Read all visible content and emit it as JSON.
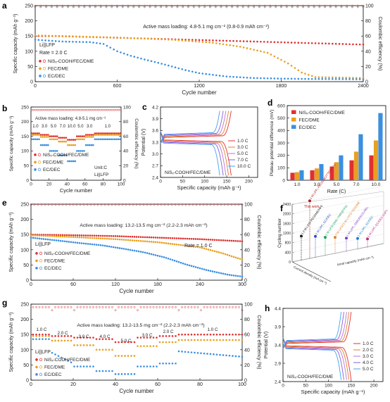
{
  "colors": {
    "red": "#e03030",
    "orange": "#e8a020",
    "blue": "#3b8fe0",
    "darkred": "#b02020"
  },
  "panels": {
    "a": "a",
    "b": "b",
    "c": "c",
    "d": "d",
    "e": "e",
    "f": "f",
    "g": "g",
    "h": "h"
  },
  "chart_data": [
    {
      "id": "a",
      "type": "scatter",
      "xlabel": "Cycle number",
      "ylabel": "Specific capacity (mAh g⁻¹)",
      "y2label": "Coulombic efficiency (%)",
      "xlim": [
        0,
        2400
      ],
      "ylim": [
        0,
        250
      ],
      "y2lim": [
        0,
        100
      ],
      "xticks": [
        "0",
        "600",
        "1200",
        "1800",
        "2400"
      ],
      "yticks": [
        "0",
        "50",
        "100",
        "150",
        "200",
        "250"
      ],
      "y2ticks": [
        "0",
        "20",
        "40",
        "60",
        "80",
        "100"
      ],
      "annotation": "Active mass loading: 4.8-5.1 mg cm⁻² (0.8-0.9 mAh cm⁻²)",
      "cell": "Li||LFP",
      "rate": "Rate = 2.0 C",
      "legend": [
        "NiSₓ-COOH/FEC/DME",
        "FEC/DME",
        "EC/DEC"
      ],
      "series": [
        {
          "name": "NiSₓ-COOH/FEC/DME",
          "x": [
            0,
            150,
            400,
            800,
            1200,
            1600,
            2000,
            2400
          ],
          "y": [
            150,
            150,
            147,
            142,
            137,
            132,
            127,
            122
          ]
        },
        {
          "name": "FEC/DME",
          "x": [
            0,
            200,
            600,
            1000,
            1300,
            1500,
            1700,
            1850,
            1950,
            2050,
            2400
          ],
          "y": [
            152,
            150,
            145,
            138,
            128,
            115,
            95,
            60,
            30,
            15,
            12
          ]
        },
        {
          "name": "EC/DEC",
          "x": [
            0,
            200,
            400,
            500,
            600,
            700,
            800,
            900,
            1000,
            1100,
            1200,
            1400,
            1600,
            1800,
            2000,
            2400
          ],
          "y": [
            138,
            132,
            130,
            124,
            100,
            85,
            73,
            62,
            50,
            38,
            28,
            17,
            12,
            10,
            9,
            8
          ]
        }
      ],
      "ce": [
        {
          "name": "NiSₓ-COOH/FEC/DME",
          "value": 99.8
        },
        {
          "name": "FEC/DME",
          "value": 99.3
        },
        {
          "name": "EC/DEC",
          "value": 98.8
        }
      ]
    },
    {
      "id": "b",
      "type": "scatter",
      "xlabel": "Cycle number",
      "ylabel": "Specific capacity (mAh g⁻¹)",
      "y2label": "Coulombic efficiency (%)",
      "xlim": [
        0,
        100
      ],
      "ylim": [
        0,
        250
      ],
      "y2lim": [
        0,
        100
      ],
      "xticks": [
        "0",
        "20",
        "40",
        "60",
        "80",
        "100"
      ],
      "yticks": [
        "0",
        "50",
        "100",
        "150",
        "200",
        "250"
      ],
      "y2ticks": [
        "0",
        "20",
        "40",
        "60",
        "80",
        "100"
      ],
      "annotation": "Active mass loading: 4.8-5.1 mg cm⁻²",
      "unit": "Unit:C",
      "cell": "Li||LFP",
      "rate_labels": [
        "1.0",
        "3.0",
        "5.0",
        "7.0",
        "10.0",
        "5.0",
        "3.0",
        "1.0"
      ],
      "legend": [
        "NiSₓ-COOH/FEC/DME",
        "FEC/DME",
        "EC/DEC"
      ],
      "segments": [
        0,
        10,
        20,
        30,
        40,
        50,
        60,
        70,
        100
      ],
      "series": [
        {
          "name": "NiSₓ-COOH/FEC/DME",
          "values": [
            160,
            155,
            150,
            145,
            138,
            150,
            155,
            160
          ]
        },
        {
          "name": "FEC/DME",
          "values": [
            155,
            148,
            140,
            132,
            120,
            140,
            148,
            155
          ]
        },
        {
          "name": "EC/DEC",
          "values": [
            140,
            120,
            100,
            85,
            65,
            100,
            120,
            140
          ]
        }
      ]
    },
    {
      "id": "c",
      "type": "line",
      "xlabel": "Specific capacity (mAh g⁻¹)",
      "ylabel": "Potential (V)",
      "xlim": [
        0,
        220
      ],
      "ylim": [
        2.4,
        4.2
      ],
      "xticks": [
        "0",
        "50",
        "100",
        "150",
        "200"
      ],
      "yticks": [
        "2.4",
        "2.7",
        "3.0",
        "3.3",
        "3.6",
        "3.9",
        "4.2"
      ],
      "caption": "NiSₓ-COOH/FEC/DME",
      "series": [
        {
          "name": "1.0 C",
          "color": "#e03030",
          "capacity": 160
        },
        {
          "name": "3.0 C",
          "color": "#e08030",
          "capacity": 154
        },
        {
          "name": "5.0 C",
          "color": "#c070d0",
          "capacity": 148
        },
        {
          "name": "7.0 C",
          "color": "#8060e0",
          "capacity": 142
        },
        {
          "name": "10.0 C",
          "color": "#40a0f0",
          "capacity": 134
        }
      ]
    },
    {
      "id": "d",
      "type": "bar",
      "xlabel": "Rate (C)",
      "ylabel": "Plateau potential difference (mV)",
      "ylim": [
        0,
        600
      ],
      "yticks": [
        "0",
        "100",
        "200",
        "300",
        "400",
        "500",
        "600"
      ],
      "categories": [
        "1.0",
        "3.0",
        "5.0",
        "7.0",
        "10.0"
      ],
      "series": [
        {
          "name": "NiSₓ-COOH/FEC/DME",
          "values": [
            60,
            80,
            110,
            160,
            200
          ]
        },
        {
          "name": "FEC/DME",
          "values": [
            65,
            95,
            145,
            230,
            320
          ]
        },
        {
          "name": "EC/DEC",
          "values": [
            80,
            130,
            200,
            370,
            540
          ]
        }
      ]
    },
    {
      "id": "e",
      "type": "scatter",
      "xlabel": "Cycle number",
      "ylabel": "Specific capacity (mAh g⁻¹)",
      "y2label": "Coulombic efficiency (%)",
      "xlim": [
        0,
        300
      ],
      "ylim": [
        0,
        250
      ],
      "y2lim": [
        0,
        100
      ],
      "xticks": [
        "0",
        "60",
        "120",
        "180",
        "240",
        "300"
      ],
      "yticks": [
        "0",
        "50",
        "100",
        "150",
        "200",
        "250"
      ],
      "y2ticks": [
        "0",
        "20",
        "40",
        "60",
        "80",
        "100"
      ],
      "annotation": "Active mass loading: 13.2-13.5 mg cm⁻² (2.2-2.3 mAh cm⁻²)",
      "cell": "Li||LFP",
      "rate": "Rate = 1.0 C",
      "legend": [
        "NiSₓ-COOH/FEC/DME",
        "FEC/DME",
        "EC/DEC"
      ],
      "series": [
        {
          "name": "NiSₓ-COOH/FEC/DME",
          "x": [
            0,
            60,
            120,
            180,
            240,
            300
          ],
          "y": [
            150,
            148,
            145,
            140,
            135,
            128
          ]
        },
        {
          "name": "FEC/DME",
          "x": [
            0,
            60,
            120,
            180,
            240,
            270,
            300
          ],
          "y": [
            148,
            142,
            135,
            125,
            108,
            90,
            68
          ]
        },
        {
          "name": "EC/DEC",
          "x": [
            0,
            40,
            70,
            100,
            130,
            160,
            190,
            220,
            250,
            280,
            300
          ],
          "y": [
            140,
            130,
            122,
            115,
            104,
            92,
            75,
            52,
            33,
            18,
            12
          ]
        }
      ]
    },
    {
      "id": "f",
      "type": "table",
      "ylabel": "Cycling number",
      "ticks": [
        "0",
        "400",
        "800",
        "1200",
        "1600",
        "2000",
        "2400"
      ],
      "this_work": "This work",
      "labels": [
        "1 M LiPF₆ FEC/DMC/TTE(Li-Cu)",
        "1.2 M LiFSI PEGDME/HFE",
        "1 M LiPF₆ EC/DEC",
        "1 M LiFSI DMC-TMP(BTFE)",
        "2 M LiFSI/1 M LiTFSI TEGDME",
        "1 M LiPF₆ DMC/FEC/LiNO₃",
        "1 M LiPF₆ EC/DEC",
        "1 M LiPF₆ EC/DEC-CuPc"
      ],
      "axis_labels": [
        "Current density (mA cm⁻²)",
        "Areal capacity (mAh cm⁻²)"
      ]
    },
    {
      "id": "g",
      "type": "scatter",
      "xlabel": "Cycle number",
      "ylabel": "Specific capacity (mAh g⁻¹)",
      "y2label": "Coulombic efficiency (%)",
      "xlim": [
        0,
        100
      ],
      "ylim": [
        0,
        250
      ],
      "y2lim": [
        0,
        100
      ],
      "xticks": [
        "0",
        "20",
        "40",
        "60",
        "80",
        "100"
      ],
      "yticks": [
        "0",
        "50",
        "100",
        "150",
        "200",
        "250"
      ],
      "y2ticks": [
        "0",
        "20",
        "40",
        "60",
        "80",
        "100"
      ],
      "annotation": "Active mass loading: 13.2-13.5 mg cm⁻² (2.2-2.3 mAh cm⁻²)",
      "cell": "Li||LFP",
      "rate_labels": [
        "1.0 C",
        "2.0 C",
        "3.0 C",
        "4.0 C",
        "5.0 C",
        "3.0 C",
        "2.0 C",
        "1.0 C"
      ],
      "segments": [
        0,
        10,
        20,
        30,
        40,
        50,
        60,
        70,
        100
      ],
      "legend": [
        "NiSₓ-COOH/FEC/DME",
        "FEC/DME",
        "EC/DEC"
      ],
      "series": [
        {
          "name": "NiSₓ-COOH/FEC/DME",
          "values": [
            150,
            145,
            140,
            135,
            125,
            140,
            145,
            150
          ]
        },
        {
          "name": "FEC/DME",
          "values": [
            145,
            130,
            115,
            100,
            80,
            112,
            125,
            132
          ]
        },
        {
          "name": "EC/DEC",
          "values": [
            135,
            90,
            45,
            30,
            20,
            45,
            55,
            80
          ]
        }
      ]
    },
    {
      "id": "h",
      "type": "line",
      "xlabel": "Specific capacity (mAh g⁻¹)",
      "ylabel": "Potential (V)",
      "xlim": [
        0,
        220
      ],
      "ylim": [
        2.4,
        4.4
      ],
      "xticks": [
        "0",
        "50",
        "100",
        "150",
        "200"
      ],
      "yticks": [
        "2.4",
        "2.9",
        "3.4",
        "3.9",
        "4.4"
      ],
      "caption": "NiSₓ-COOH/FEC/DME",
      "series": [
        {
          "name": "1.0 C",
          "color": "#e03030",
          "capacity": 150
        },
        {
          "name": "2.0 C",
          "color": "#e08030",
          "capacity": 145
        },
        {
          "name": "3.0 C",
          "color": "#c070d0",
          "capacity": 140
        },
        {
          "name": "4.0 C",
          "color": "#8060e0",
          "capacity": 134
        },
        {
          "name": "5.0 C",
          "color": "#40a0f0",
          "capacity": 128
        }
      ]
    }
  ]
}
